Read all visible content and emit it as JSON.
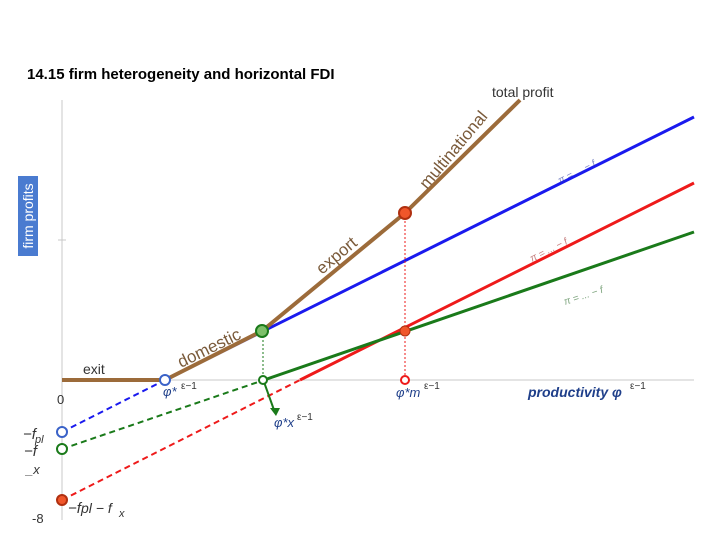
{
  "title": "14.15 firm heterogeneity and horizontal FDI",
  "y_axis_label": "firm profits",
  "labels": {
    "total_profit": "total profit",
    "exit": "exit",
    "domestic": "domestic",
    "export": "export",
    "multinational": "multinational",
    "zero": "0",
    "neg_eight": "-8",
    "productivity_axis": "productivity φ",
    "exponent": "ε−1",
    "phi_star": "φ*",
    "phi_star_x": "φ*x",
    "phi_star_m": "φ*m",
    "intercept_fpl": "−f",
    "intercept_fpl_sub": "pl",
    "intercept_f": "−f",
    "intercept_x": "_x",
    "intercept_fpl_fx": "−f",
    "intercept_fpl_fx_rest": "pl − f",
    "intercept_fpl_fx_sub": "x",
    "line_label_blue": "π = ... − f",
    "line_label_red": "π = ... − f",
    "line_label_green": "π = ... − f"
  },
  "colors": {
    "total_profit": "#9c6b3a",
    "domestic": "#1a1aee",
    "multinational": "#ee1a1a",
    "export": "#1a7a1a",
    "marker_orange": "#f0562a",
    "marker_green": "#7dc06a",
    "marker_blue": "#3a62c8",
    "axis_label_bg": "#4a7bd0",
    "productivity_label": "#1f3f8a"
  },
  "chart_data": {
    "type": "line",
    "x": [
      0,
      1,
      2,
      3,
      4,
      5,
      6
    ],
    "series": [
      {
        "values": [
          -2.2,
          -1.2,
          -0.2,
          0.8,
          1.8,
          2.8,
          3.8
        ]
      },
      {
        "values": [
          -6.0,
          -4.4,
          -2.8,
          -1.2,
          0.4,
          2.0,
          3.6
        ]
      },
      {
        "values": [
          -3.0,
          -2.3,
          -1.6,
          -0.9,
          -0.2,
          0.5,
          1.2
        ]
      }
    ],
    "ylim": [
      -8,
      8
    ]
  }
}
